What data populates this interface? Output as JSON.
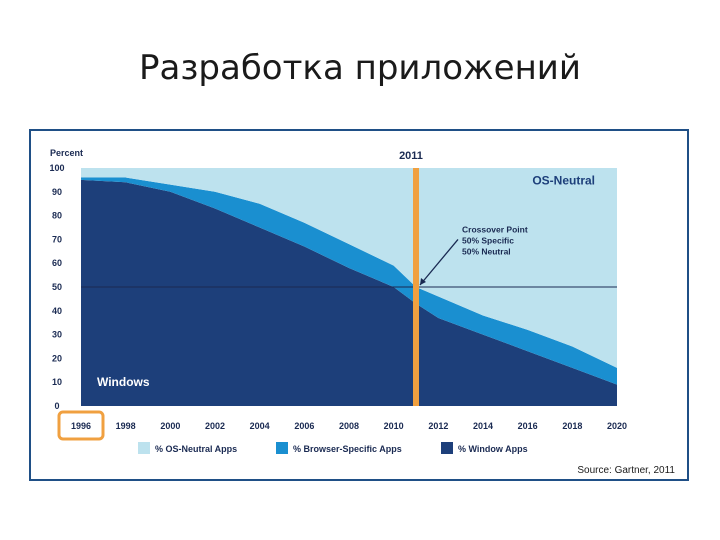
{
  "slide": {
    "title": "Разработка приложений"
  },
  "chart_data": {
    "type": "area",
    "stacked": true,
    "ylabel": "Percent",
    "ylim": [
      0,
      100
    ],
    "yticks": [
      0,
      10,
      20,
      30,
      40,
      50,
      60,
      70,
      80,
      90,
      100
    ],
    "xlim": [
      1996,
      2020
    ],
    "xticks": [
      "1996",
      "1998",
      "2000",
      "2002",
      "2004",
      "2006",
      "2008",
      "2010",
      "2012",
      "2014",
      "2016",
      "2018",
      "2020"
    ],
    "highlighted_tick": "1996",
    "x": [
      1996,
      1998,
      2000,
      2002,
      2004,
      2006,
      2008,
      2010,
      2011,
      2012,
      2014,
      2016,
      2018,
      2020
    ],
    "series": [
      {
        "name": "% Window Apps",
        "color": "#1d3f7a",
        "values": [
          95,
          94,
          90,
          83,
          75,
          67,
          58,
          50,
          43,
          37,
          30,
          23,
          16,
          9
        ]
      },
      {
        "name": "% Browser-Specific Apps",
        "color": "#1a8fd0",
        "values": [
          1,
          2,
          3,
          7,
          10,
          10,
          10,
          9,
          7,
          9,
          8,
          9,
          9,
          7
        ]
      },
      {
        "name": "% OS-Neutral Apps",
        "color": "#bde2ee",
        "values": [
          4,
          4,
          7,
          10,
          15,
          23,
          32,
          41,
          50,
          54,
          62,
          68,
          75,
          84
        ]
      }
    ],
    "reference_line": {
      "label": "2011",
      "x": 2011,
      "color": "#f0a040"
    },
    "horizontal_line": {
      "y": 50
    },
    "annotation": {
      "lines": [
        "Crossover Point",
        "50% Specific",
        "50% Neutral"
      ],
      "x": 2011,
      "y": 50
    },
    "region_labels": {
      "top": "OS-Neutral",
      "bottom": "Windows"
    },
    "source": "Source: Gartner, 2011"
  }
}
